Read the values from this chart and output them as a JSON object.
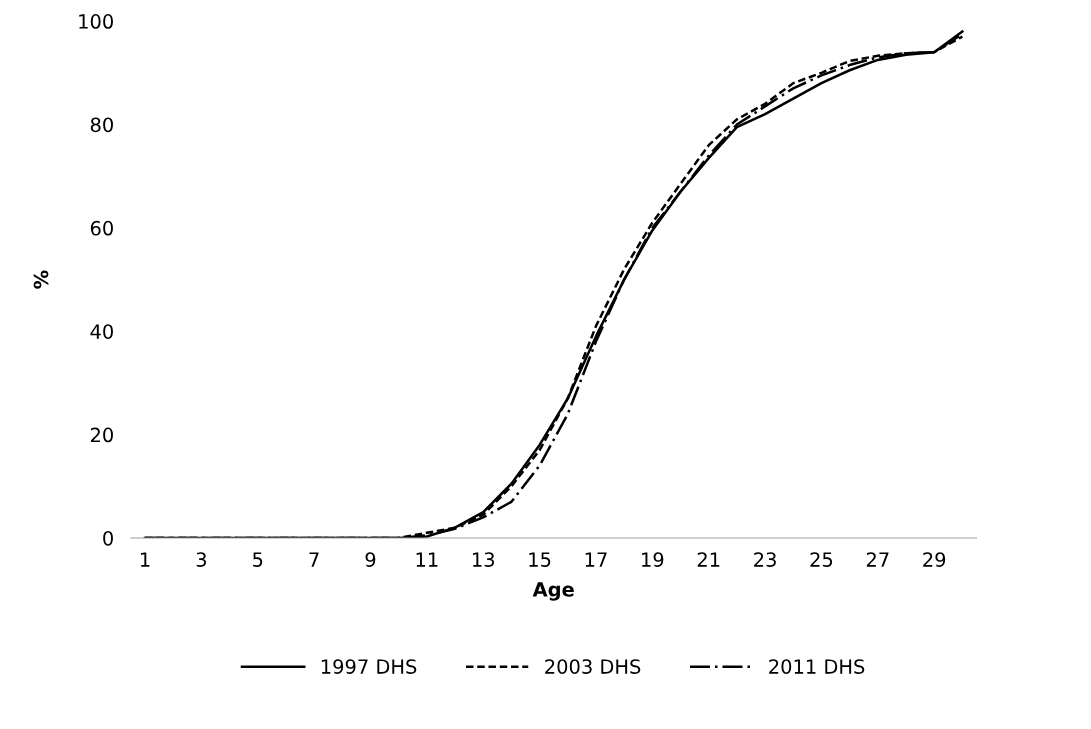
{
  "chart_data": {
    "type": "line",
    "xlabel": "Age",
    "ylabel": "%",
    "categories": [
      "1",
      null,
      "3",
      null,
      "5",
      null,
      "7",
      null,
      "9",
      null,
      "11",
      null,
      "13",
      null,
      "15",
      null,
      "17",
      null,
      "19",
      null,
      "21",
      null,
      "23",
      null,
      "25",
      null,
      "27",
      null,
      "29",
      null
    ],
    "series": [
      {
        "name": "1997 DHS",
        "color": "#000000",
        "line_style": "solid",
        "values": [
          0,
          0,
          0,
          0,
          0,
          0,
          0,
          0,
          0,
          0,
          0.3,
          2,
          5,
          10.5,
          18,
          27,
          39,
          50,
          59.5,
          67,
          73.5,
          79.5,
          82,
          85,
          88,
          90.5,
          92.5,
          93.5,
          94,
          98
        ]
      },
      {
        "name": "2003 DHS",
        "color": "#000000",
        "line_style": "dashed",
        "values": [
          0,
          0,
          0,
          0,
          0,
          0,
          0,
          0,
          0,
          0,
          1,
          2,
          4.5,
          10,
          17,
          27,
          41,
          52,
          61,
          68.5,
          76,
          81,
          84,
          88,
          90,
          92.3,
          93.3,
          93.8,
          94,
          97
        ]
      },
      {
        "name": "2011 DHS",
        "color": "#000000",
        "line_style": "dashdot",
        "values": [
          0,
          0,
          0,
          0,
          0,
          0,
          0,
          0,
          0,
          0,
          0.5,
          1.8,
          4,
          7,
          14,
          24,
          38,
          50,
          60,
          67,
          74,
          80,
          83.5,
          87,
          89.5,
          91.5,
          93,
          93.8,
          94,
          97.5
        ]
      }
    ],
    "ylim": [
      0,
      100
    ],
    "yticks": [
      0,
      20,
      40,
      60,
      80,
      100
    ],
    "grid": false,
    "legend": "bottom",
    "marker": "none"
  }
}
